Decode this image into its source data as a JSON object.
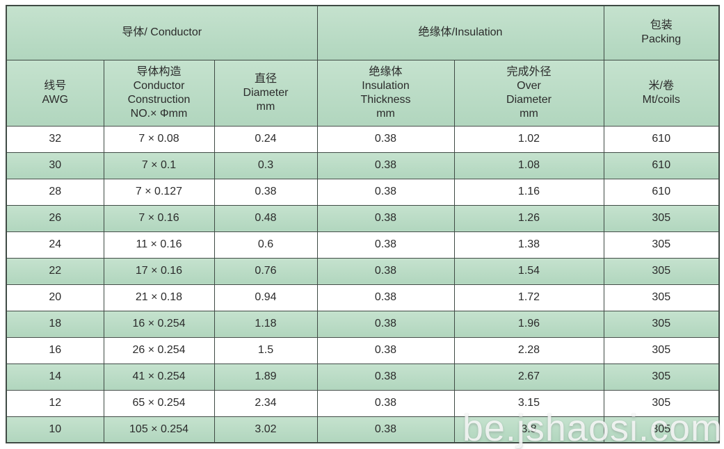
{
  "watermark": {
    "text": "be.jshaosi.com"
  },
  "colors": {
    "row_green": "#b7dbc3",
    "border": "#3f4a44",
    "text": "#2b2b2b"
  },
  "table": {
    "group_headers": [
      {
        "label": "导体/ Conductor",
        "span": 3
      },
      {
        "label": "绝缘体/Insulation",
        "span": 2
      },
      {
        "label": "包装\nPacking",
        "span": 1
      }
    ],
    "column_headers": [
      "线号\nAWG",
      "导体构造\nConductor\nConstruction\nNO.× Φmm",
      "直径\nDiameter\nmm",
      "绝缘体\nInsulation\nThickness\nmm",
      "完成外径\nOver\nDiameter\nmm",
      "米/卷\nMt/coils"
    ],
    "row_keys": [
      "awg",
      "conductor-construction",
      "diameter",
      "insulation-thickness",
      "over-diameter",
      "packing"
    ],
    "rows": [
      [
        "32",
        "7 × 0.08",
        "0.24",
        "0.38",
        "1.02",
        "610"
      ],
      [
        "30",
        "7 × 0.1",
        "0.3",
        "0.38",
        "1.08",
        "610"
      ],
      [
        "28",
        "7 × 0.127",
        "0.38",
        "0.38",
        "1.16",
        "610"
      ],
      [
        "26",
        "7 × 0.16",
        "0.48",
        "0.38",
        "1.26",
        "305"
      ],
      [
        "24",
        "11 × 0.16",
        "0.6",
        "0.38",
        "1.38",
        "305"
      ],
      [
        "22",
        "17 × 0.16",
        "0.76",
        "0.38",
        "1.54",
        "305"
      ],
      [
        "20",
        "21 × 0.18",
        "0.94",
        "0.38",
        "1.72",
        "305"
      ],
      [
        "18",
        "16 × 0.254",
        "1.18",
        "0.38",
        "1.96",
        "305"
      ],
      [
        "16",
        "26 × 0.254",
        "1.5",
        "0.38",
        "2.28",
        "305"
      ],
      [
        "14",
        "41 × 0.254",
        "1.89",
        "0.38",
        "2.67",
        "305"
      ],
      [
        "12",
        "65 × 0.254",
        "2.34",
        "0.38",
        "3.15",
        "305"
      ],
      [
        "10",
        "105 × 0.254",
        "3.02",
        "0.38",
        "3.8",
        "305"
      ]
    ]
  }
}
